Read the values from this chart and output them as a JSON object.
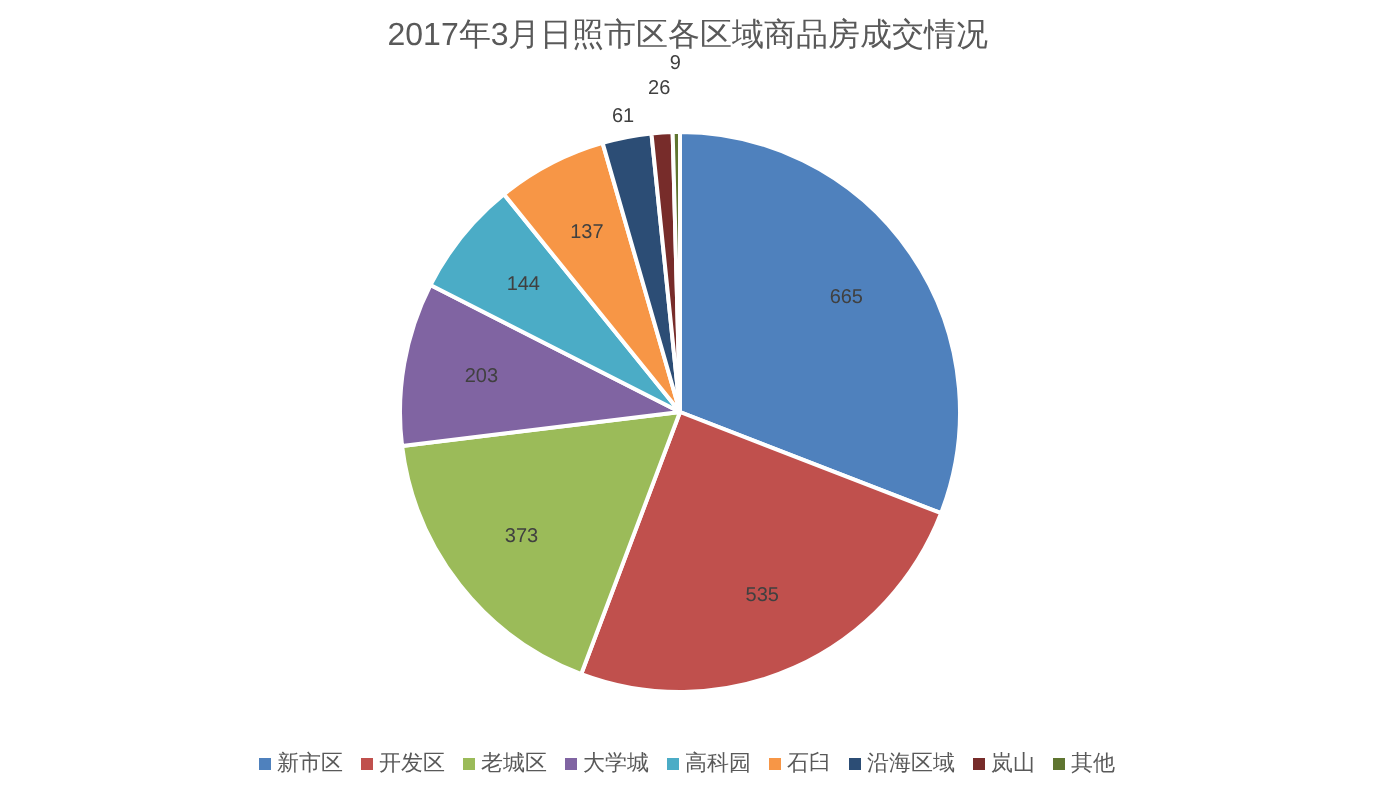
{
  "chart_data": {
    "type": "pie",
    "title": "2017年3月日照市区各区域商品房成交情况",
    "categories": [
      "新市区",
      "开发区",
      "老城区",
      "大学城",
      "高科园",
      "石臼",
      "沿海区域",
      "岚山",
      "其他"
    ],
    "values": [
      665,
      535,
      373,
      203,
      144,
      137,
      61,
      26,
      9
    ],
    "colors": [
      "#4f81bd",
      "#c0504d",
      "#9bbb59",
      "#8064a2",
      "#4bacc6",
      "#f79646",
      "#2c4d75",
      "#772c2a",
      "#5f7530"
    ],
    "data_labels": true,
    "legend": "bottom"
  }
}
